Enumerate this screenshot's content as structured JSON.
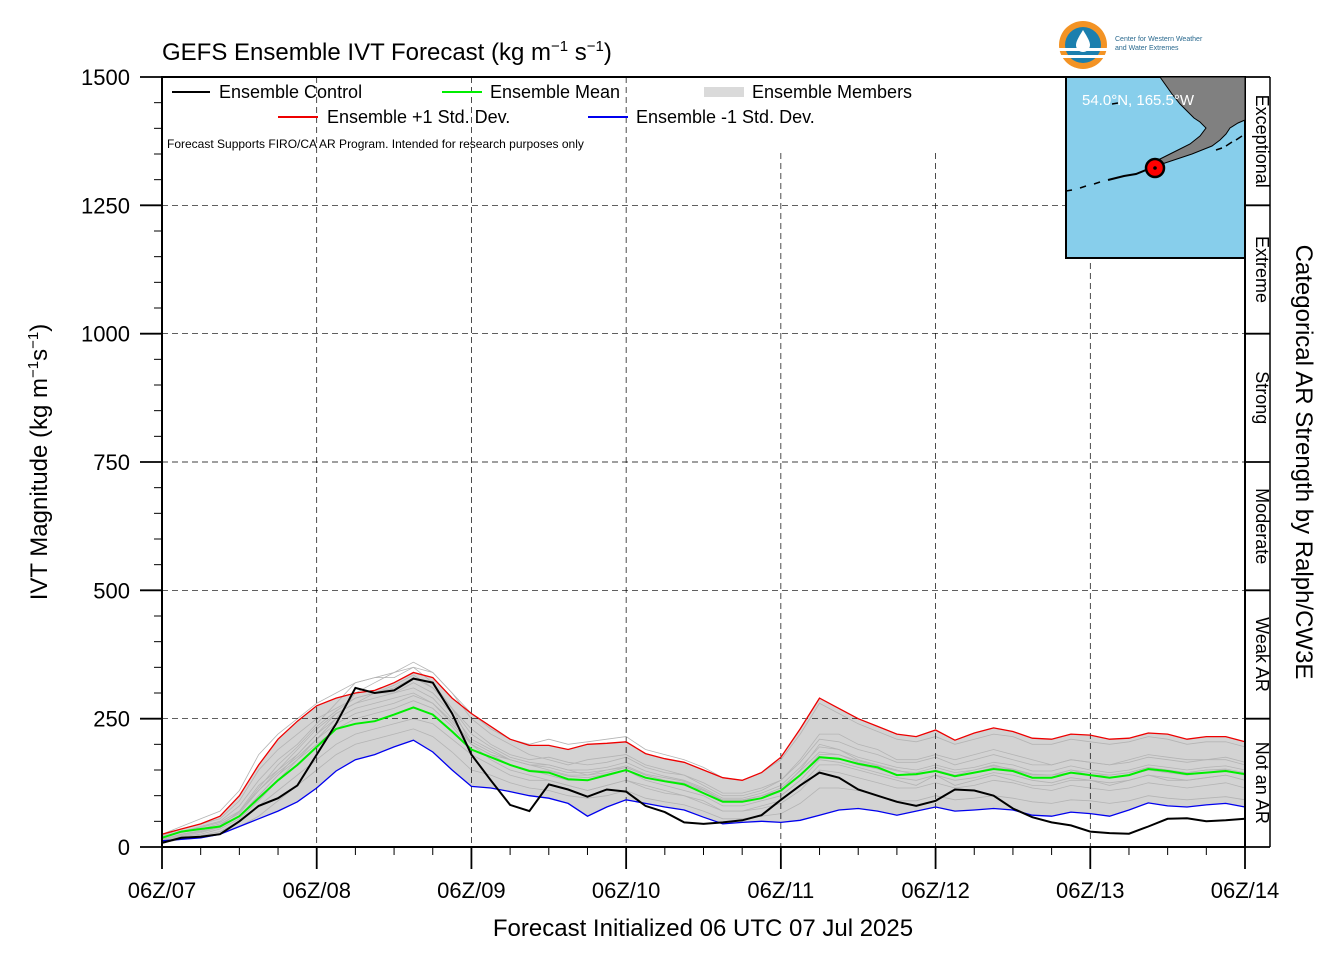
{
  "chart_data": {
    "type": "line",
    "title": "GEFS Ensemble IVT Forecast (kg m",
    "title_exp1": "−1",
    "title_mid": " s",
    "title_exp2": "−1",
    "title_end": ")",
    "ylabel": "IVT Magnitude (kg m",
    "ylabel_exp1": "−1",
    "ylabel_mid": "s",
    "ylabel_exp2": "−1",
    "ylabel_end": ")",
    "xlabel": "Forecast Initialized 06 UTC 07 Jul 2025",
    "right_label": "Categorical AR Strength by Ralph/CW3E",
    "note": "Forecast Supports FIRO/CA AR Program. Intended for research purposes only",
    "ylim": [
      0,
      1500
    ],
    "yticks": [
      0,
      250,
      500,
      750,
      1000,
      1250,
      1500
    ],
    "xlim": [
      0,
      168
    ],
    "xticks": [
      "06Z/07",
      "06Z/08",
      "06Z/09",
      "06Z/10",
      "06Z/11",
      "06Z/12",
      "06Z/13",
      "06Z/14"
    ],
    "x_units": "forecast hours from 06Z/07",
    "grid": true,
    "legend_position": "top-left",
    "legend": [
      {
        "key": "control",
        "label": "Ensemble Control"
      },
      {
        "key": "mean",
        "label": "Ensemble Mean"
      },
      {
        "key": "members",
        "label": "Ensemble Members"
      },
      {
        "key": "plus",
        "label": "Ensemble +1 Std. Dev."
      },
      {
        "key": "minus",
        "label": "Ensemble -1 Std. Dev."
      }
    ],
    "categories": [
      {
        "label": "Not an AR",
        "range": [
          0,
          250
        ]
      },
      {
        "label": "Weak AR",
        "range": [
          250,
          500
        ]
      },
      {
        "label": "Moderate",
        "range": [
          500,
          750
        ]
      },
      {
        "label": "Strong",
        "range": [
          750,
          1000
        ]
      },
      {
        "label": "Extreme",
        "range": [
          1000,
          1250
        ]
      },
      {
        "label": "Exceptional",
        "range": [
          1250,
          1500
        ]
      }
    ],
    "inset_map": {
      "location_label": "54.0°N, 165.5°W",
      "water_color": "#87ceeb",
      "land_color": "#808080",
      "marker_color": "#ff0000"
    },
    "colors": {
      "control": "#000000",
      "mean": "#00ee00",
      "plus": "#ee0000",
      "minus": "#0000ee",
      "members": "#b4b4b4",
      "spread_fill": "#d3d3d3"
    },
    "x": [
      0,
      3,
      6,
      9,
      12,
      15,
      18,
      21,
      24,
      27,
      30,
      33,
      36,
      39,
      42,
      45,
      48,
      51,
      54,
      57,
      60,
      63,
      66,
      69,
      72,
      75,
      78,
      81,
      84,
      87,
      90,
      93,
      96,
      99,
      102,
      105,
      108,
      111,
      114,
      117,
      120,
      123,
      126,
      129,
      132,
      135,
      138,
      141,
      144,
      147,
      150,
      153,
      156,
      159,
      162,
      165,
      168
    ],
    "series": [
      {
        "key": "control",
        "name": "Ensemble Control",
        "values": [
          8,
          18,
          20,
          25,
          50,
          80,
          95,
          120,
          180,
          240,
          310,
          300,
          305,
          328,
          320,
          260,
          180,
          130,
          82,
          70,
          122,
          112,
          98,
          112,
          108,
          80,
          68,
          48,
          45,
          48,
          52,
          62,
          92,
          120,
          145,
          135,
          112,
          100,
          88,
          80,
          90,
          112,
          110,
          100,
          75,
          58,
          48,
          42,
          30,
          27,
          26,
          40,
          55,
          56,
          50,
          52,
          55
        ]
      },
      {
        "key": "mean",
        "name": "Ensemble Mean",
        "values": [
          18,
          30,
          35,
          40,
          60,
          95,
          130,
          160,
          195,
          230,
          240,
          245,
          258,
          272,
          258,
          225,
          190,
          175,
          160,
          148,
          145,
          132,
          130,
          140,
          150,
          135,
          128,
          122,
          105,
          88,
          88,
          95,
          110,
          140,
          175,
          172,
          162,
          155,
          140,
          142,
          148,
          138,
          145,
          152,
          148,
          135,
          135,
          145,
          140,
          135,
          140,
          152,
          148,
          142,
          145,
          148,
          142
        ]
      },
      {
        "key": "plus",
        "name": "Ensemble +1 Std. Dev.",
        "values": [
          25,
          35,
          45,
          60,
          100,
          160,
          210,
          245,
          275,
          290,
          300,
          305,
          320,
          340,
          330,
          290,
          260,
          235,
          210,
          198,
          198,
          190,
          200,
          202,
          205,
          182,
          172,
          165,
          150,
          135,
          130,
          145,
          175,
          230,
          290,
          270,
          250,
          235,
          220,
          215,
          228,
          208,
          222,
          232,
          225,
          212,
          210,
          220,
          218,
          210,
          212,
          222,
          220,
          210,
          215,
          215,
          205
        ]
      },
      {
        "key": "minus",
        "name": "Ensemble -1 Std. Dev.",
        "values": [
          12,
          15,
          18,
          25,
          40,
          55,
          70,
          88,
          115,
          148,
          170,
          180,
          195,
          208,
          185,
          150,
          118,
          115,
          108,
          100,
          95,
          85,
          60,
          78,
          92,
          85,
          78,
          72,
          58,
          45,
          48,
          50,
          48,
          52,
          62,
          72,
          75,
          70,
          62,
          70,
          78,
          70,
          72,
          75,
          72,
          62,
          60,
          68,
          65,
          60,
          72,
          86,
          80,
          78,
          82,
          85,
          78
        ]
      },
      {
        "key": "members",
        "name": "Ensemble Members",
        "values": [
          [
            15,
            25,
            30,
            40,
            70,
            120,
            150,
            190,
            230,
            260,
            280,
            290,
            300,
            320,
            300,
            260,
            210,
            190,
            170,
            160,
            150,
            140,
            140,
            150,
            155,
            140,
            130,
            120,
            110,
            90,
            90,
            100,
            110,
            150,
            200,
            190,
            170,
            160,
            150,
            140,
            150,
            140,
            150,
            160,
            150,
            140,
            140,
            150,
            140,
            140,
            145,
            155,
            150,
            145,
            150,
            150,
            140
          ],
          [
            10,
            20,
            25,
            35,
            55,
            90,
            130,
            170,
            210,
            250,
            300,
            320,
            340,
            350,
            320,
            270,
            200,
            170,
            150,
            140,
            130,
            120,
            110,
            120,
            130,
            120,
            110,
            100,
            90,
            70,
            70,
            80,
            90,
            120,
            160,
            160,
            150,
            140,
            130,
            120,
            140,
            120,
            130,
            140,
            130,
            120,
            120,
            130,
            130,
            120,
            130,
            140,
            130,
            130,
            135,
            140,
            130
          ],
          [
            20,
            30,
            40,
            50,
            80,
            130,
            170,
            200,
            240,
            280,
            320,
            330,
            330,
            350,
            340,
            300,
            250,
            220,
            200,
            180,
            170,
            160,
            170,
            175,
            180,
            160,
            150,
            140,
            120,
            100,
            100,
            110,
            130,
            170,
            220,
            220,
            200,
            190,
            170,
            170,
            180,
            170,
            180,
            190,
            180,
            170,
            160,
            170,
            165,
            160,
            170,
            180,
            175,
            170,
            170,
            175,
            165
          ],
          [
            12,
            22,
            28,
            38,
            60,
            100,
            140,
            180,
            220,
            260,
            280,
            300,
            300,
            310,
            290,
            250,
            200,
            180,
            160,
            150,
            140,
            130,
            130,
            140,
            150,
            130,
            120,
            110,
            100,
            80,
            80,
            90,
            100,
            130,
            170,
            165,
            155,
            145,
            135,
            130,
            140,
            130,
            135,
            145,
            140,
            130,
            125,
            135,
            130,
            125,
            130,
            140,
            135,
            130,
            135,
            140,
            130
          ],
          [
            18,
            28,
            35,
            45,
            65,
            110,
            150,
            180,
            220,
            250,
            270,
            280,
            290,
            300,
            280,
            240,
            200,
            180,
            170,
            160,
            160,
            150,
            140,
            145,
            155,
            140,
            130,
            125,
            110,
            90,
            90,
            95,
            110,
            140,
            180,
            180,
            165,
            155,
            140,
            140,
            150,
            140,
            145,
            155,
            150,
            140,
            140,
            145,
            140,
            135,
            140,
            150,
            145,
            140,
            145,
            150,
            140
          ],
          [
            10,
            18,
            22,
            30,
            50,
            80,
            110,
            140,
            170,
            200,
            220,
            230,
            240,
            250,
            240,
            210,
            180,
            160,
            140,
            130,
            130,
            120,
            110,
            120,
            130,
            115,
            105,
            100,
            85,
            70,
            70,
            75,
            85,
            110,
            150,
            145,
            135,
            125,
            115,
            115,
            125,
            115,
            120,
            130,
            125,
            115,
            110,
            120,
            115,
            110,
            115,
            125,
            120,
            115,
            120,
            125,
            115
          ],
          [
            22,
            35,
            45,
            55,
            90,
            150,
            190,
            220,
            250,
            270,
            290,
            300,
            310,
            330,
            310,
            270,
            230,
            200,
            180,
            170,
            175,
            165,
            160,
            165,
            175,
            155,
            145,
            140,
            125,
            105,
            105,
            115,
            130,
            165,
            210,
            205,
            190,
            180,
            165,
            165,
            175,
            160,
            170,
            180,
            170,
            160,
            160,
            170,
            165,
            160,
            165,
            175,
            170,
            165,
            170,
            170,
            160
          ],
          [
            15,
            24,
            30,
            40,
            60,
            100,
            140,
            170,
            200,
            230,
            250,
            260,
            270,
            285,
            270,
            235,
            190,
            175,
            160,
            150,
            148,
            138,
            135,
            142,
            150,
            135,
            128,
            120,
            105,
            88,
            88,
            95,
            108,
            140,
            175,
            172,
            160,
            152,
            140,
            140,
            148,
            138,
            145,
            152,
            148,
            135,
            135,
            145,
            140,
            135,
            140,
            150,
            145,
            142,
            145,
            148,
            140
          ],
          [
            25,
            40,
            55,
            70,
            110,
            180,
            220,
            250,
            280,
            300,
            320,
            330,
            340,
            360,
            340,
            300,
            260,
            230,
            210,
            200,
            210,
            200,
            205,
            210,
            215,
            190,
            180,
            170,
            155,
            135,
            130,
            145,
            170,
            220,
            280,
            260,
            240,
            225,
            210,
            205,
            215,
            200,
            210,
            220,
            215,
            200,
            200,
            210,
            205,
            200,
            205,
            215,
            210,
            200,
            205,
            205,
            195
          ],
          [
            8,
            15,
            18,
            25,
            40,
            60,
            90,
            120,
            150,
            180,
            200,
            210,
            220,
            230,
            215,
            185,
            150,
            140,
            125,
            115,
            110,
            100,
            95,
            100,
            110,
            95,
            88,
            82,
            70,
            55,
            55,
            60,
            65,
            85,
            115,
            115,
            110,
            100,
            90,
            90,
            100,
            92,
            95,
            100,
            95,
            88,
            85,
            92,
            90,
            85,
            90,
            100,
            95,
            92,
            95,
            98,
            92
          ],
          [
            14,
            25,
            32,
            42,
            68,
            115,
            160,
            195,
            235,
            265,
            290,
            300,
            315,
            335,
            310,
            270,
            220,
            195,
            175,
            165,
            160,
            150,
            150,
            155,
            165,
            148,
            138,
            130,
            115,
            95,
            95,
            105,
            120,
            155,
            195,
            190,
            175,
            165,
            155,
            150,
            160,
            150,
            155,
            165,
            160,
            148,
            148,
            158,
            150,
            145,
            150,
            160,
            155,
            150,
            155,
            158,
            150
          ],
          [
            20,
            30,
            38,
            48,
            70,
            110,
            145,
            175,
            210,
            240,
            260,
            270,
            280,
            295,
            280,
            245,
            205,
            185,
            170,
            160,
            155,
            145,
            145,
            150,
            158,
            142,
            135,
            128,
            112,
            92,
            92,
            100,
            115,
            148,
            185,
            180,
            168,
            158,
            148,
            145,
            155,
            145,
            150,
            158,
            152,
            142,
            140,
            150,
            145,
            140,
            145,
            155,
            150,
            145,
            150,
            152,
            145
          ]
        ]
      }
    ]
  }
}
